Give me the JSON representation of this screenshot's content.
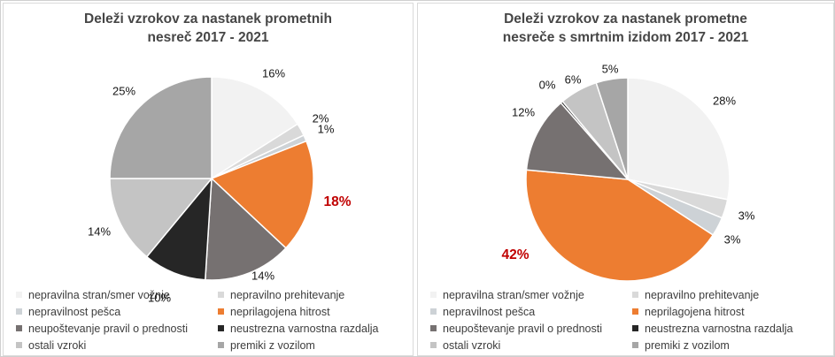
{
  "palette": {
    "slice_colors": [
      "#f2f2f2",
      "#d9d9d9",
      "#cdd2d6",
      "#ed7d31",
      "#767171",
      "#262626",
      "#c4c4c4",
      "#a6a6a6"
    ],
    "highlight_label_color": "#c00000",
    "label_color": "#161616",
    "title_color": "#464646",
    "panel_border_color": "#dadada"
  },
  "chart_data": [
    {
      "type": "pie",
      "title": "Deleži vzrokov za nastanek prometnih nesreč 2017 - 2021",
      "title_lines": [
        "Deleži vzrokov za nastanek prometnih",
        "nesreč 2017 - 2021"
      ],
      "categories": [
        "nepravilna stran/smer vožnje",
        "nepravilno prehitevanje",
        "nepravilnost pešca",
        "neprilagojena hitrost",
        "neupoštevanje pravil o prednosti",
        "neustrezna varnostna razdalja",
        "ostali vzroki",
        "premiki z vozilom"
      ],
      "values": [
        16,
        2,
        1,
        18,
        14,
        10,
        14,
        25
      ],
      "labels": [
        "16%",
        "2%",
        "1%",
        "18%",
        "14%",
        "10%",
        "14%",
        "25%"
      ],
      "highlight_index": 3,
      "start_angle_deg": 0,
      "direction": "clockwise",
      "legend_position": "bottom",
      "label_overrides": {
        "0": {
          "angle": 30.5,
          "r": 1.2
        },
        "3": {
          "r": 1.26
        },
        "4": {
          "angle": 152,
          "r": 1.08
        },
        "5": {
          "angle": 203.5,
          "r": 1.28
        }
      }
    },
    {
      "type": "pie",
      "title": "Deleži vzrokov za nastanek prometne nesreče s smrtnim izidom 2017 - 2021",
      "title_lines": [
        "Deleži vzrokov za nastanek prometne",
        "nesreče s smrtnim izidom 2017 - 2021"
      ],
      "categories": [
        "nepravilna stran/smer vožnje",
        "nepravilno prehitevanje",
        "nepravilnost pešca",
        "neprilagojena hitrost",
        "neupoštevanje pravil o prednosti",
        "neustrezna varnostna razdalja",
        "ostali vzroki",
        "premiki z vozilom"
      ],
      "values": [
        28,
        3,
        3,
        42,
        12,
        0,
        6,
        5
      ],
      "labels": [
        "28%",
        "3%",
        "3%",
        "42%",
        "12%",
        "0%",
        "6%",
        "5%"
      ],
      "highlight_index": 3,
      "start_angle_deg": 0,
      "direction": "clockwise",
      "legend_position": "bottom",
      "label_overrides": {
        "2": {
          "angle": 120,
          "r": 1.18
        },
        "3": {
          "angle": 236,
          "r": 1.33
        },
        "4": {
          "angle": 303,
          "r": 1.22
        },
        "6": {
          "r": 1.12
        },
        "7": {
          "r": 1.1
        }
      }
    }
  ]
}
